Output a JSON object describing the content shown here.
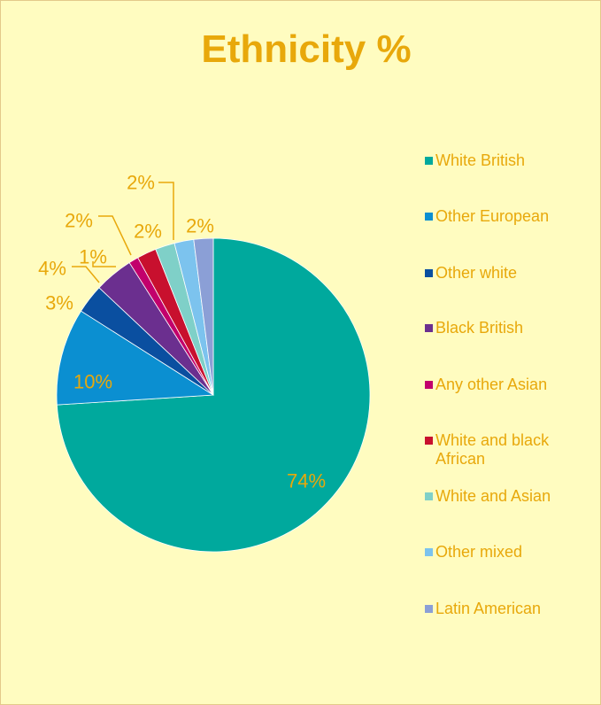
{
  "chart_data": {
    "type": "pie",
    "title": "Ethnicity %",
    "slices": [
      {
        "label": "White British",
        "value": 74,
        "data_label": "74%",
        "color": "#00a99d"
      },
      {
        "label": "Other European",
        "value": 10,
        "data_label": "10%",
        "color": "#0b8fd1"
      },
      {
        "label": "Other white",
        "value": 3,
        "data_label": "3%",
        "color": "#0a4fa0"
      },
      {
        "label": "Black British",
        "value": 4,
        "data_label": "4%",
        "color": "#6b2f8f"
      },
      {
        "label": "Any other Asian",
        "value": 1,
        "data_label": "1%",
        "color": "#c2006c"
      },
      {
        "label": "White and black African",
        "value": 2,
        "data_label": "2%",
        "color": "#c8102e"
      },
      {
        "label": "White and Asian",
        "value": 2,
        "data_label": "2%",
        "color": "#7fd0c8"
      },
      {
        "label": "Other mixed",
        "value": 2,
        "data_label": "2%",
        "color": "#7cc3ee"
      },
      {
        "label": "Latin American",
        "value": 2,
        "data_label": "2%",
        "color": "#8b9fd6"
      }
    ],
    "legend_position": "right"
  },
  "colors": {
    "background": "#fffcc0",
    "text": "#e8a80b",
    "border": "#e3c98a"
  }
}
